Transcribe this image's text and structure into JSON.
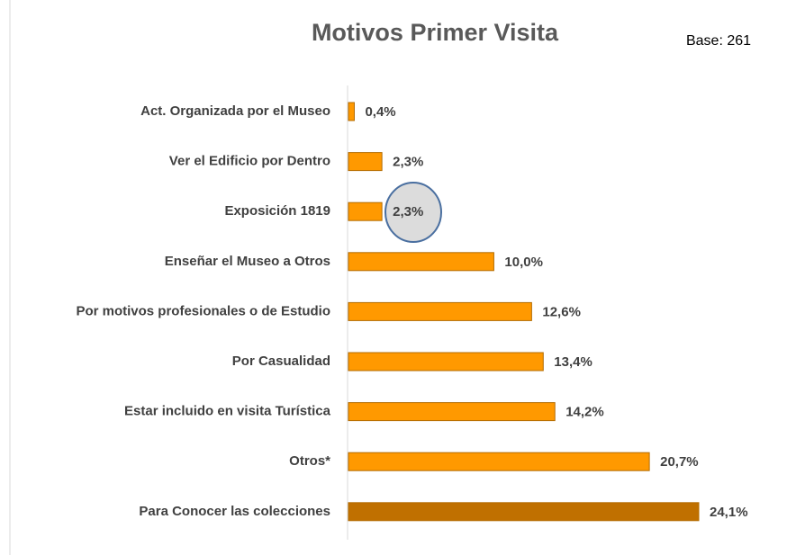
{
  "chart_data": {
    "type": "bar",
    "orientation": "horizontal",
    "title": "Motivos Primer Visita",
    "annotation": "Base: 261",
    "categories": [
      "Act. Organizada por el Museo",
      "Ver el Edificio por Dentro",
      "Exposición 1819",
      "Enseñar el Museo a Otros",
      "Por motivos profesionales o de Estudio",
      "Por Casualidad",
      "Estar incluido en visita Turística",
      "Otros*",
      "Para Conocer las colecciones"
    ],
    "values": [
      0.4,
      2.3,
      2.3,
      10.0,
      12.6,
      13.4,
      14.2,
      20.7,
      24.1
    ],
    "value_labels": [
      "0,4%",
      "2,3%",
      "2,3%",
      "10,0%",
      "12,6%",
      "13,4%",
      "14,2%",
      "20,7%",
      "24,1%"
    ],
    "colors": [
      "#FF9900",
      "#FF9900",
      "#FF9900",
      "#FF9900",
      "#FF9900",
      "#FF9900",
      "#FF9900",
      "#FF9900",
      "#C07000"
    ]
  }
}
